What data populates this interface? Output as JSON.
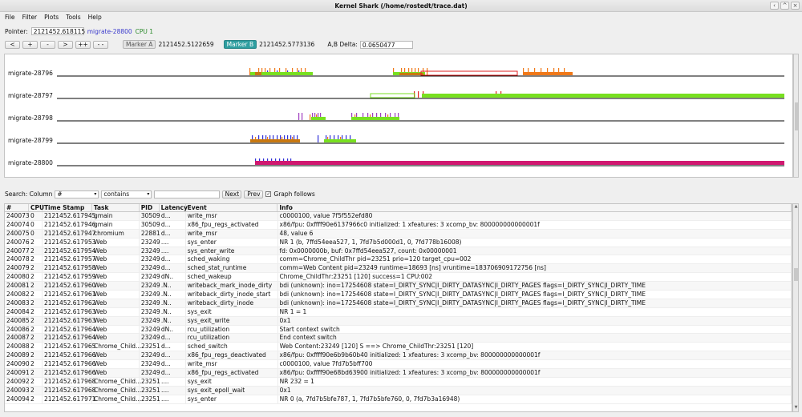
{
  "window": {
    "title": "Kernel Shark (/home/rostedt/trace.dat)",
    "buttons": [
      "‹",
      "^",
      "×"
    ]
  },
  "menu": [
    "File",
    "Filter",
    "Plots",
    "Tools",
    "Help"
  ],
  "pointer": {
    "label": "Pointer:",
    "value": "2121452.618115",
    "task": "migrate-28800",
    "cpu": "CPU 1"
  },
  "nav": {
    "buttons": [
      "<",
      "+",
      "-",
      ">",
      "++",
      "- -"
    ]
  },
  "markers": {
    "a_label": "Marker A",
    "a_value": "2121452.5122659",
    "b_label": "Marker B",
    "b_value": "2121452.5773136",
    "delta_label": "A,B Delta:",
    "delta_value": "0.0650477"
  },
  "plot": {
    "rows": [
      {
        "label": "migrate-28796"
      },
      {
        "label": "migrate-28797"
      },
      {
        "label": "migrate-28798"
      },
      {
        "label": "migrate-28799"
      },
      {
        "label": "migrate-28800"
      }
    ],
    "colors": {
      "orange": "#f07818",
      "green": "#78e020",
      "blue": "#3030d8",
      "purple": "#a040c0",
      "red": "#e02020",
      "magenta": "#d01870",
      "darkorange": "#c87810",
      "axis": "#000000"
    }
  },
  "search": {
    "label": "Search: Column",
    "column": "#",
    "op": "contains",
    "value": "",
    "next": "Next",
    "prev": "Prev",
    "graph_follows": "Graph follows"
  },
  "table": {
    "headers": [
      "#",
      "CPU",
      "Time Stamp",
      "Task",
      "PID",
      "Latency",
      "Event",
      "Info"
    ],
    "rows": [
      [
        "240073",
        "0",
        "2121452.617945",
        "gmain",
        "30509",
        "d...",
        "write_msr",
        "c0000100, value 7f5f552efd80"
      ],
      [
        "240074",
        "0",
        "2121452.617946",
        "gmain",
        "30509",
        "d...",
        "x86_fpu_regs_activated",
        "x86/fpu: 0xffff90e6137966c0 initialized: 1 xfeatures: 3 xcomp_bv: 800000000000001f"
      ],
      [
        "240075",
        "0",
        "2121452.617947",
        "chromium",
        "22881",
        "d...",
        "write_msr",
        "48, value 6"
      ],
      [
        "240076",
        "2",
        "2121452.617953",
        "Web",
        "23249",
        "....",
        "sys_enter",
        "NR 1 (b, 7ffd54eea527, 1, 7fd7b5d000d1, 0, 7fd778b16008)"
      ],
      [
        "240077",
        "2",
        "2121452.617954",
        "Web",
        "23249",
        "....",
        "sys_enter_write",
        "fd: 0x0000000b, buf: 0x7ffd54eea527, count: 0x00000001"
      ],
      [
        "240078",
        "2",
        "2121452.617957",
        "Web",
        "23249",
        "d...",
        "sched_waking",
        "comm=Chrome_ChildThr pid=23251 prio=120 target_cpu=002"
      ],
      [
        "240079",
        "2",
        "2121452.617958",
        "Web",
        "23249",
        "d...",
        "sched_stat_runtime",
        "comm=Web Content pid=23249 runtime=18693 [ns] vruntime=183706909172756 [ns]"
      ],
      [
        "240080",
        "2",
        "2121452.617959",
        "Web",
        "23249",
        "dN..",
        "sched_wakeup",
        "Chrome_ChildThr:23251 [120] success=1 CPU:002"
      ],
      [
        "240081",
        "2",
        "2121452.617960",
        "Web",
        "23249",
        ".N..",
        "writeback_mark_inode_dirty",
        "bdi (unknown): ino=17254608 state=I_DIRTY_SYNC|I_DIRTY_DATASYNC|I_DIRTY_PAGES flags=I_DIRTY_SYNC|I_DIRTY_TIME"
      ],
      [
        "240082",
        "2",
        "2121452.617961",
        "Web",
        "23249",
        ".N..",
        "writeback_dirty_inode_start",
        "bdi (unknown): ino=17254608 state=I_DIRTY_SYNC|I_DIRTY_DATASYNC|I_DIRTY_PAGES flags=I_DIRTY_SYNC|I_DIRTY_TIME"
      ],
      [
        "240083",
        "2",
        "2121452.617962",
        "Web",
        "23249",
        ".N..",
        "writeback_dirty_inode",
        "bdi (unknown): ino=17254608 state=I_DIRTY_SYNC|I_DIRTY_DATASYNC|I_DIRTY_PAGES flags=I_DIRTY_SYNC|I_DIRTY_TIME"
      ],
      [
        "240084",
        "2",
        "2121452.617963",
        "Web",
        "23249",
        ".N..",
        "sys_exit",
        "NR 1 = 1"
      ],
      [
        "240085",
        "2",
        "2121452.617963",
        "Web",
        "23249",
        ".N..",
        "sys_exit_write",
        "0x1"
      ],
      [
        "240086",
        "2",
        "2121452.617964",
        "Web",
        "23249",
        "dN..",
        "rcu_utilization",
        "Start context switch"
      ],
      [
        "240087",
        "2",
        "2121452.617964",
        "Web",
        "23249",
        "d...",
        "rcu_utilization",
        "End context switch"
      ],
      [
        "240088",
        "2",
        "2121452.617965",
        "Chrome_Child...",
        "23251",
        "d...",
        "sched_switch",
        "Web Content:23249 [120] S ==> Chrome_ChildThr:23251 [120]"
      ],
      [
        "240089",
        "2",
        "2121452.617966",
        "Web",
        "23249",
        "d...",
        "x86_fpu_regs_deactivated",
        "x86/fpu: 0xffff90e6b9b60b40 initialized: 1 xfeatures: 3 xcomp_bv: 800000000000001f"
      ],
      [
        "240090",
        "2",
        "2121452.617966",
        "Web",
        "23249",
        "d...",
        "write_msr",
        "c0000100, value 7fd7b5bff700"
      ],
      [
        "240091",
        "2",
        "2121452.617966",
        "Web",
        "23249",
        "d...",
        "x86_fpu_regs_activated",
        "x86/fpu: 0xffff90e68bd63900 initialized: 1 xfeatures: 3 xcomp_bv: 800000000000001f"
      ],
      [
        "240092",
        "2",
        "2121452.617968",
        "Chrome_Child...",
        "23251",
        "....",
        "sys_exit",
        "NR 232 = 1"
      ],
      [
        "240093",
        "2",
        "2121452.617968",
        "Chrome_Child...",
        "23251",
        "....",
        "sys_exit_epoll_wait",
        "0x1"
      ],
      [
        "240094",
        "2",
        "2121452.617971",
        "Chrome_Child...",
        "23251",
        "....",
        "sys_enter",
        "NR 0 (a, 7fd7b5bfe787, 1, 7fd7b5bfe760, 0, 7fd7b3a16948)"
      ]
    ]
  }
}
